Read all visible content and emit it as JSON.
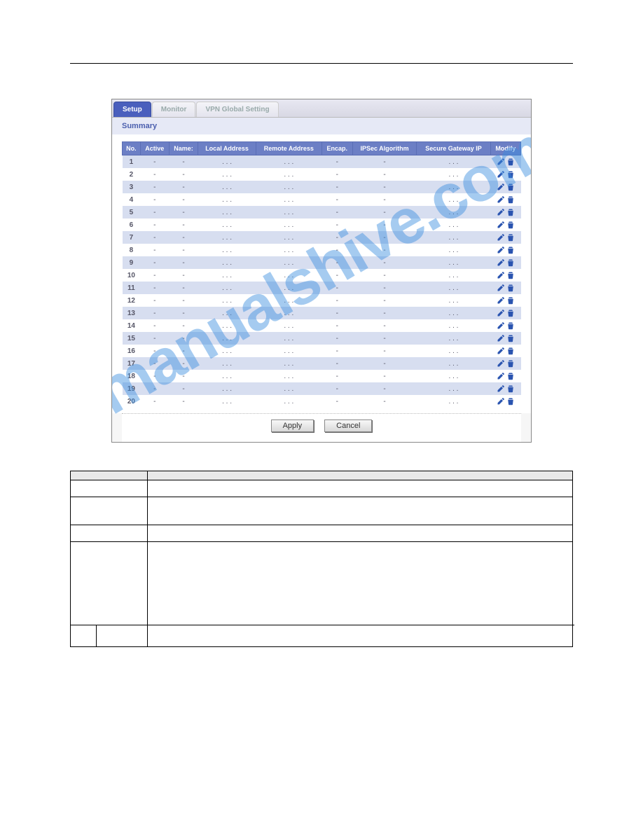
{
  "tabs": {
    "setup": "Setup",
    "monitor": "Monitor",
    "global": "VPN Global Setting"
  },
  "section_title": "Summary",
  "columns": {
    "no": "No.",
    "active": "Active",
    "name": "Name:",
    "local": "Local Address",
    "remote": "Remote Address",
    "encap": "Encap.",
    "ipsec": "IPSec Algorithm",
    "gateway": "Secure Gateway IP",
    "modify": "Modify"
  },
  "row_count": 20,
  "cell_dash": "-",
  "cell_dots": ". . .",
  "buttons": {
    "apply": "Apply",
    "cancel": "Cancel"
  },
  "watermark_text": "manualshive.com",
  "colors": {
    "tab_active_bg": "#4a5fbd",
    "header_bg": "#6c7fc5",
    "odd_row_bg": "#d7def0",
    "icon_color": "#2a54b0"
  },
  "icons": {
    "edit": "edit-icon",
    "delete": "delete-icon"
  }
}
